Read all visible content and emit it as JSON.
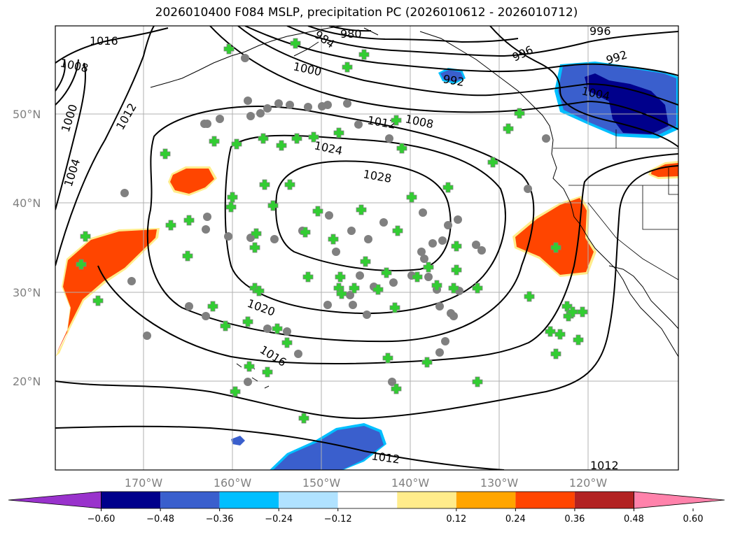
{
  "title": "2026010400 F084 MSLP, precipitation PC (2026010612 - 2026010712)",
  "lat_labels": [
    "50°N",
    "40°N",
    "30°N",
    "20°N"
  ],
  "lon_labels": [
    "170°W",
    "160°W",
    "150°W",
    "140°W",
    "130°W",
    "120°W"
  ],
  "isobar_labels": [
    "1016",
    "1008",
    "1000",
    "1012",
    "1004",
    "984",
    "980",
    "1000",
    "1008",
    "1012",
    "1024",
    "1028",
    "996",
    "996",
    "992",
    "992",
    "1004",
    "1020",
    "1016",
    "1012",
    "1012"
  ],
  "colorbar": {
    "colors": [
      "#9932cc",
      "#00008b",
      "#3a5fcd",
      "#00bfff",
      "#b0e2ff",
      "#ffffff",
      "#ffec8b",
      "#ffa500",
      "#ff4500",
      "#b22222",
      "#ff82ab"
    ],
    "ticks": [
      "−0.60",
      "−0.48",
      "−0.36",
      "−0.24",
      "−0.12",
      "0.12",
      "0.24",
      "0.36",
      "0.48",
      "0.60"
    ]
  },
  "colors": {
    "station_circle": "#808080",
    "station_cross": "#32cd32",
    "grid": "#b0b0b0"
  }
}
